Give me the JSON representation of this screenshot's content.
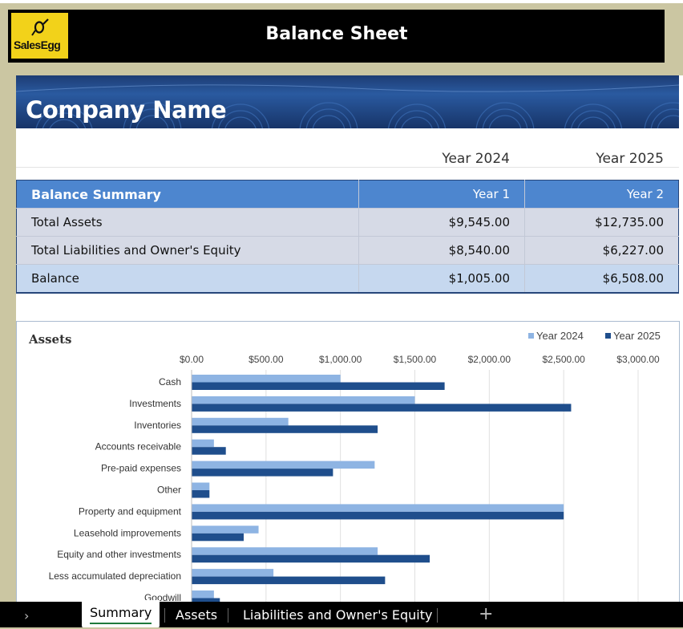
{
  "header": {
    "title": "Balance Sheet",
    "logo_text": "SalesEgg"
  },
  "banner": {
    "company_name": "Company Name"
  },
  "years": {
    "year1_label": "Year 2024",
    "year2_label": "Year 2025"
  },
  "summary": {
    "header": {
      "label": "Balance Summary",
      "col1": "Year 1",
      "col2": "Year 2"
    },
    "rows": [
      {
        "label": "Total Assets",
        "v1": "$9,545.00",
        "v2": "$12,735.00"
      },
      {
        "label": "Total Liabilities and Owner's Equity",
        "v1": "$8,540.00",
        "v2": "$6,227.00"
      },
      {
        "label": "Balance",
        "v1": "$1,005.00",
        "v2": "$6,508.00"
      }
    ]
  },
  "chart_data": {
    "type": "bar",
    "orientation": "horizontal",
    "title": "Assets",
    "legend_position": "top-right",
    "xlim": [
      0,
      3000
    ],
    "tick_labels": [
      "$0.00",
      "$500.00",
      "$1,000.00",
      "$1,500.00",
      "$2,000.00",
      "$2,500.00",
      "$3,000.00"
    ],
    "tick_values": [
      0,
      500,
      1000,
      1500,
      2000,
      2500,
      3000
    ],
    "categories": [
      "Cash",
      "Investments",
      "Inventories",
      "Accounts receivable",
      "Pre-paid expenses",
      "Other",
      "Property and equipment",
      "Leasehold improvements",
      "Equity and other investments",
      "Less accumulated depreciation",
      "Goodwill"
    ],
    "series": [
      {
        "name": "Year 2024",
        "color": "#8eb4e3",
        "values": [
          1000,
          1500,
          650,
          150,
          1230,
          120,
          2500,
          450,
          1250,
          550,
          150
        ]
      },
      {
        "name": "Year 2025",
        "color": "#1f4e8c",
        "values": [
          1700,
          2550,
          1250,
          230,
          950,
          120,
          2500,
          350,
          1600,
          1300,
          190
        ]
      }
    ],
    "grid": true
  },
  "tabs": {
    "items": [
      "Summary",
      "Assets",
      "Liabilities and Owner's Equity"
    ],
    "active": "Summary",
    "nav_icon": "chevron-right-icon",
    "add_icon": "plus-icon",
    "nav_glyph": "›",
    "add_glyph": "+"
  }
}
